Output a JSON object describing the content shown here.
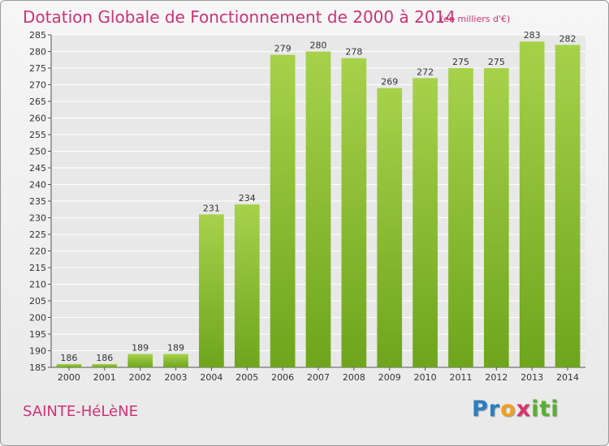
{
  "header": {
    "title": "Dotation Globale de Fonctionnement de 2000 à 2014",
    "unit_note": "(en milliers d'€)"
  },
  "footer": {
    "commune": "SAINTE-HéLèNE",
    "logo_letters": [
      {
        "char": "P",
        "color": "#2a7fc0"
      },
      {
        "char": "r",
        "color": "#2a7fc0"
      },
      {
        "char": "o",
        "color": "#f0a020"
      },
      {
        "char": "x",
        "color": "#d6336c"
      },
      {
        "char": "i",
        "color": "#58b030"
      },
      {
        "char": "t",
        "color": "#58b030"
      },
      {
        "char": "i",
        "color": "#58b030"
      }
    ]
  },
  "colors": {
    "title": "#cc3377",
    "bar_top": "#a6d24a",
    "bar_bottom": "#6ea51c",
    "grid": "#ffffff",
    "plot_bg": "#e8e8e8"
  },
  "chart_data": {
    "type": "bar",
    "title": "Dotation Globale de Fonctionnement de 2000 à 2014",
    "subtitle": "(en milliers d'€)",
    "categories": [
      "2000",
      "2001",
      "2002",
      "2003",
      "2004",
      "2005",
      "2006",
      "2007",
      "2008",
      "2009",
      "2010",
      "2011",
      "2012",
      "2013",
      "2014"
    ],
    "values": [
      186,
      186,
      189,
      189,
      231,
      234,
      279,
      280,
      278,
      269,
      272,
      275,
      275,
      283,
      282
    ],
    "ylim": [
      185,
      285
    ],
    "yticks": [
      185,
      190,
      195,
      200,
      205,
      210,
      215,
      220,
      225,
      230,
      235,
      240,
      245,
      250,
      255,
      260,
      265,
      270,
      275,
      280,
      285
    ],
    "grid": true,
    "xlabel": "",
    "ylabel": ""
  }
}
